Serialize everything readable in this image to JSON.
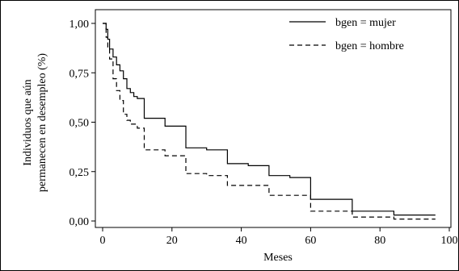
{
  "chart_data": {
    "type": "line",
    "step": true,
    "xlabel": "Meses",
    "ylabel_lines": [
      "Individuos que aún",
      "permanecen en desempleo (%)"
    ],
    "xlim": [
      0,
      100
    ],
    "ylim": [
      0,
      1
    ],
    "x_ticks": [
      {
        "value": 0,
        "label": "0"
      },
      {
        "value": 20,
        "label": "20"
      },
      {
        "value": 40,
        "label": "40"
      },
      {
        "value": 60,
        "label": "60"
      },
      {
        "value": 80,
        "label": "80"
      },
      {
        "value": 100,
        "label": "100"
      }
    ],
    "y_ticks": [
      {
        "value": 0,
        "label": "0,00"
      },
      {
        "value": 0.25,
        "label": "0,25"
      },
      {
        "value": 0.5,
        "label": "0,50"
      },
      {
        "value": 0.75,
        "label": "0,75"
      },
      {
        "value": 1,
        "label": "1,00"
      }
    ],
    "grid": false,
    "legend_position": "top-right",
    "series": [
      {
        "name": "bgen = mujer",
        "style": "solid",
        "points": [
          [
            0,
            1.0
          ],
          [
            1,
            0.97
          ],
          [
            1.5,
            0.92
          ],
          [
            2,
            0.87
          ],
          [
            3,
            0.83
          ],
          [
            4,
            0.79
          ],
          [
            5,
            0.76
          ],
          [
            6,
            0.72
          ],
          [
            7,
            0.67
          ],
          [
            8,
            0.65
          ],
          [
            9,
            0.63
          ],
          [
            10,
            0.62
          ],
          [
            12,
            0.52
          ],
          [
            18,
            0.48
          ],
          [
            24,
            0.37
          ],
          [
            30,
            0.36
          ],
          [
            36,
            0.29
          ],
          [
            42,
            0.28
          ],
          [
            48,
            0.23
          ],
          [
            54,
            0.22
          ],
          [
            60,
            0.11
          ],
          [
            72,
            0.05
          ],
          [
            84,
            0.03
          ],
          [
            96,
            0.03
          ]
        ]
      },
      {
        "name": "bgen = hombre",
        "style": "dashed",
        "points": [
          [
            0,
            1.0
          ],
          [
            1,
            0.93
          ],
          [
            1.5,
            0.88
          ],
          [
            2,
            0.82
          ],
          [
            3,
            0.72
          ],
          [
            4,
            0.66
          ],
          [
            5,
            0.61
          ],
          [
            6,
            0.54
          ],
          [
            7,
            0.51
          ],
          [
            8,
            0.49
          ],
          [
            10,
            0.47
          ],
          [
            12,
            0.36
          ],
          [
            18,
            0.33
          ],
          [
            24,
            0.24
          ],
          [
            30,
            0.23
          ],
          [
            36,
            0.18
          ],
          [
            48,
            0.13
          ],
          [
            60,
            0.05
          ],
          [
            72,
            0.02
          ],
          [
            84,
            0.01
          ],
          [
            96,
            0.01
          ]
        ]
      }
    ]
  }
}
